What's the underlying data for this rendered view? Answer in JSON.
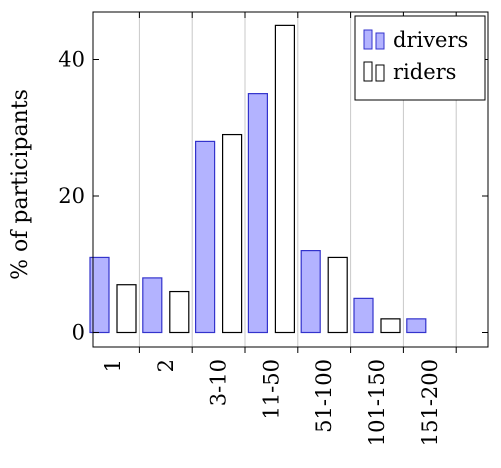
{
  "chart_data": {
    "type": "bar",
    "categories": [
      "1",
      "2",
      "3-10",
      "11-50",
      "51-100",
      "101-150",
      "151-200"
    ],
    "series": [
      {
        "name": "drivers",
        "values": [
          11,
          8,
          28,
          35,
          12,
          5,
          2
        ],
        "fill": "#b3b3ff",
        "stroke": "#3333cc"
      },
      {
        "name": "riders",
        "values": [
          7,
          6,
          29,
          45,
          11,
          2,
          0
        ],
        "fill": "#ffffff",
        "stroke": "#000000"
      }
    ],
    "ylabel": "% of participants",
    "xlabel": "",
    "yticks": [
      0,
      20,
      40
    ],
    "ylim": [
      -2,
      47
    ],
    "grid": "x",
    "legend_position": "top-right"
  }
}
